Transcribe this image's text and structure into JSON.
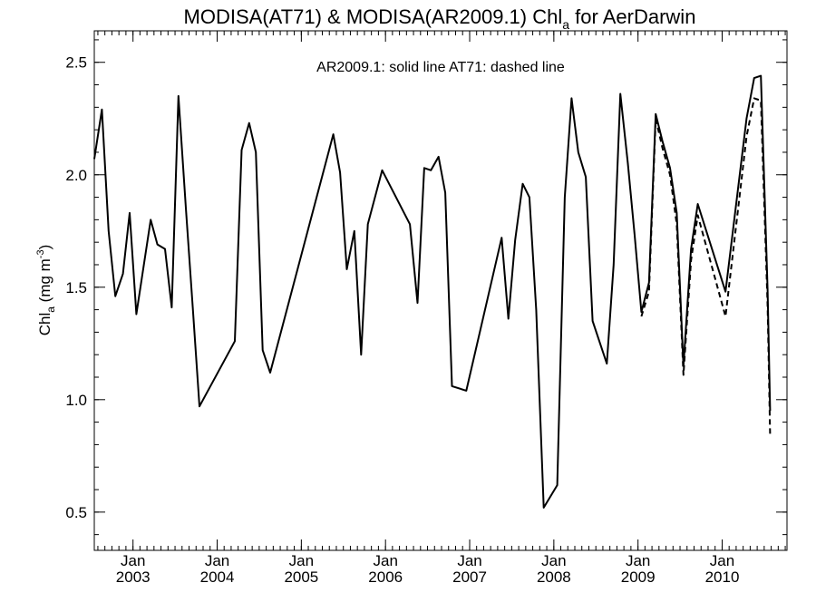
{
  "chart_data": {
    "type": "line",
    "title_main": "MODISA(AT71) & MODISA(AR2009.1)  Chl",
    "title_sub": "a",
    "title_tail": " for AerDarwin",
    "ylabel_main": "Chl",
    "ylabel_sub": "a",
    "ylabel_unit": " (mg m",
    "ylabel_exp": "-3",
    "ylabel_close": ")",
    "annotation": "AR2009.1: solid line   AT71: dashed line",
    "xlim": [
      2002.54,
      2010.77
    ],
    "ylim": [
      0.33,
      2.64
    ],
    "yticks": [
      {
        "value": 0.5,
        "label": "0.5"
      },
      {
        "value": 1.0,
        "label": "1.0"
      },
      {
        "value": 1.5,
        "label": "1.5"
      },
      {
        "value": 2.0,
        "label": "2.0"
      },
      {
        "value": 2.5,
        "label": "2.5"
      }
    ],
    "yminor_step": 0.1,
    "xticks": [
      {
        "value": 2003.0,
        "month": "Jan",
        "year": "2003"
      },
      {
        "value": 2004.0,
        "month": "Jan",
        "year": "2004"
      },
      {
        "value": 2005.0,
        "month": "Jan",
        "year": "2005"
      },
      {
        "value": 2006.0,
        "month": "Jan",
        "year": "2006"
      },
      {
        "value": 2007.0,
        "month": "Jan",
        "year": "2007"
      },
      {
        "value": 2008.0,
        "month": "Jan",
        "year": "2008"
      },
      {
        "value": 2009.0,
        "month": "Jan",
        "year": "2009"
      },
      {
        "value": 2010.0,
        "month": "Jan",
        "year": "2010"
      }
    ],
    "xminor_step": 0.0833333,
    "series": [
      {
        "name": "AR2009.1",
        "style": "solid",
        "color": "#000000",
        "points": [
          [
            2002.54,
            2.07
          ],
          [
            2002.63,
            2.29
          ],
          [
            2002.71,
            1.75
          ],
          [
            2002.79,
            1.46
          ],
          [
            2002.88,
            1.56
          ],
          [
            2002.96,
            1.83
          ],
          [
            2003.04,
            1.38
          ],
          [
            2003.21,
            1.8
          ],
          [
            2003.29,
            1.69
          ],
          [
            2003.38,
            1.67
          ],
          [
            2003.46,
            1.41
          ],
          [
            2003.54,
            2.35
          ],
          [
            2003.63,
            1.84
          ],
          [
            2003.71,
            1.41
          ],
          [
            2003.79,
            0.97
          ],
          [
            2004.21,
            1.26
          ],
          [
            2004.29,
            2.11
          ],
          [
            2004.38,
            2.23
          ],
          [
            2004.46,
            2.1
          ],
          [
            2004.54,
            1.22
          ],
          [
            2004.63,
            1.12
          ],
          [
            2005.38,
            2.18
          ],
          [
            2005.46,
            2.01
          ],
          [
            2005.54,
            1.58
          ],
          [
            2005.63,
            1.75
          ],
          [
            2005.71,
            1.2
          ],
          [
            2005.79,
            1.78
          ],
          [
            2005.96,
            2.02
          ],
          [
            2006.29,
            1.78
          ],
          [
            2006.38,
            1.43
          ],
          [
            2006.46,
            2.03
          ],
          [
            2006.54,
            2.02
          ],
          [
            2006.63,
            2.08
          ],
          [
            2006.71,
            1.92
          ],
          [
            2006.79,
            1.06
          ],
          [
            2006.96,
            1.04
          ],
          [
            2007.38,
            1.72
          ],
          [
            2007.46,
            1.36
          ],
          [
            2007.54,
            1.71
          ],
          [
            2007.63,
            1.96
          ],
          [
            2007.71,
            1.9
          ],
          [
            2007.79,
            1.4
          ],
          [
            2007.88,
            0.52
          ],
          [
            2008.04,
            0.62
          ],
          [
            2008.13,
            1.9
          ],
          [
            2008.21,
            2.34
          ],
          [
            2008.29,
            2.1
          ],
          [
            2008.38,
            1.99
          ],
          [
            2008.46,
            1.35
          ],
          [
            2008.63,
            1.16
          ],
          [
            2008.71,
            1.6
          ],
          [
            2008.79,
            2.36
          ],
          [
            2008.88,
            2.05
          ],
          [
            2008.96,
            1.73
          ],
          [
            2009.04,
            1.39
          ],
          [
            2009.13,
            1.52
          ],
          [
            2009.21,
            2.27
          ],
          [
            2009.29,
            2.15
          ],
          [
            2009.38,
            2.03
          ],
          [
            2009.46,
            1.83
          ],
          [
            2009.54,
            1.15
          ],
          [
            2009.63,
            1.67
          ],
          [
            2009.71,
            1.87
          ],
          [
            2010.04,
            1.48
          ],
          [
            2010.29,
            2.25
          ],
          [
            2010.38,
            2.43
          ],
          [
            2010.46,
            2.44
          ],
          [
            2010.54,
            1.49
          ],
          [
            2010.57,
            0.95
          ]
        ]
      },
      {
        "name": "AT71",
        "style": "dashed",
        "color": "#000000",
        "points": [
          [
            2009.04,
            1.37
          ],
          [
            2009.13,
            1.48
          ],
          [
            2009.21,
            2.25
          ],
          [
            2009.29,
            2.12
          ],
          [
            2009.38,
            2.0
          ],
          [
            2009.46,
            1.78
          ],
          [
            2009.54,
            1.11
          ],
          [
            2009.63,
            1.62
          ],
          [
            2009.71,
            1.82
          ],
          [
            2010.04,
            1.37
          ],
          [
            2010.29,
            2.17
          ],
          [
            2010.38,
            2.34
          ],
          [
            2010.46,
            2.33
          ],
          [
            2010.54,
            1.42
          ],
          [
            2010.57,
            0.84
          ]
        ]
      }
    ]
  }
}
